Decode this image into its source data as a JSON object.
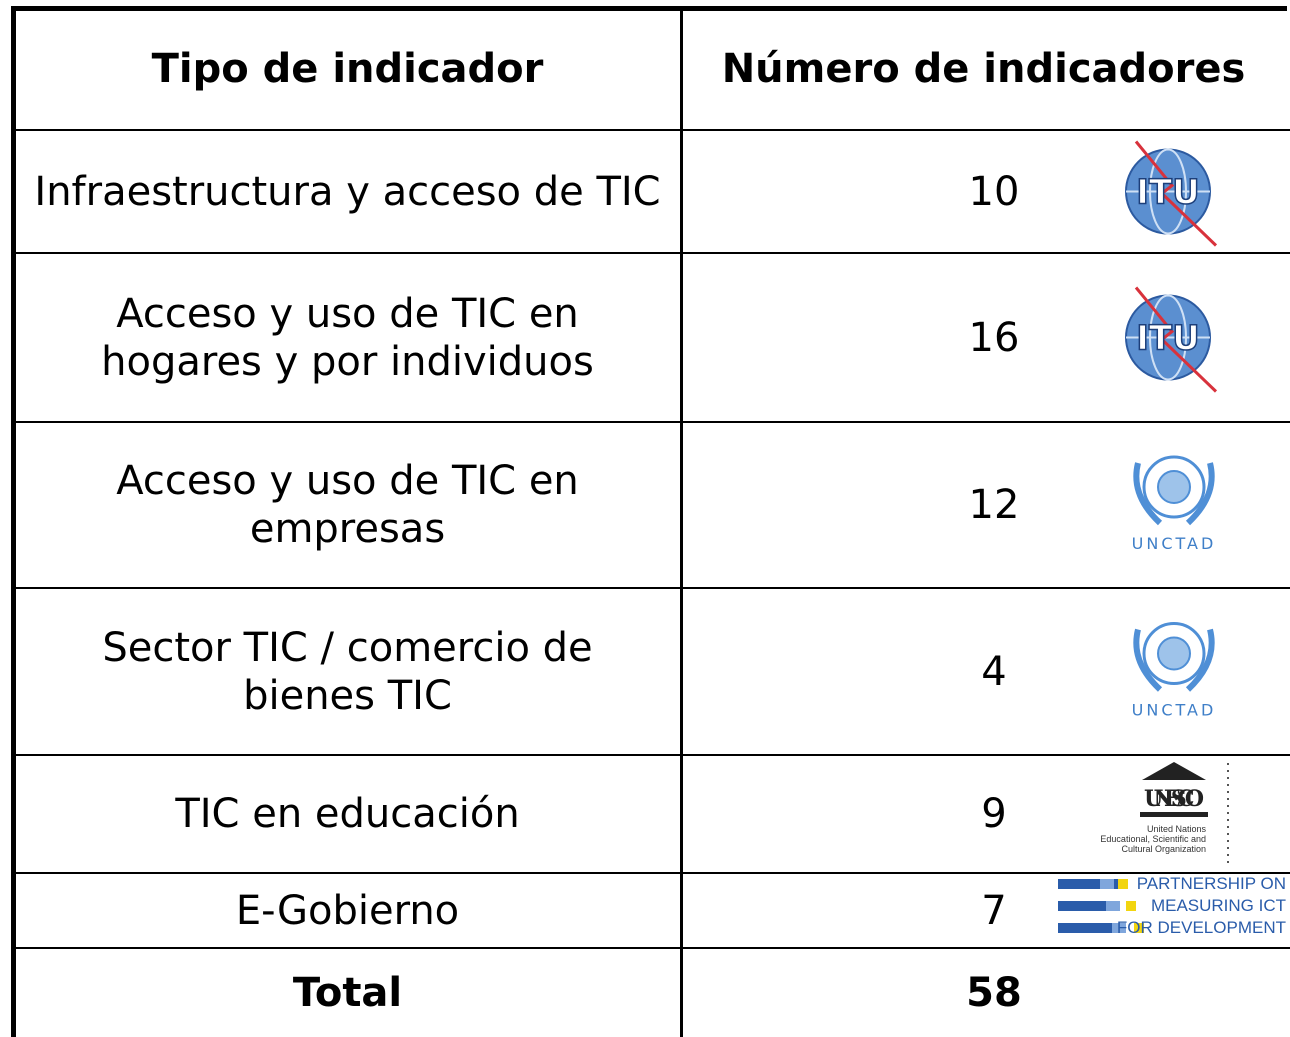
{
  "table": {
    "header": [
      "Tipo de indicador",
      "Número de indicadores"
    ],
    "rows": [
      {
        "type": "Infraestructura y acceso de TIC",
        "count": 10,
        "logo": {
          "kind": "itu",
          "text": "ITU"
        }
      },
      {
        "type": "Acceso y uso de TIC en hogares y por individuos",
        "count": 16,
        "logo": {
          "kind": "itu",
          "text": "ITU"
        }
      },
      {
        "type": "Acceso y uso de TIC en empresas",
        "count": 12,
        "logo": {
          "kind": "un",
          "text": "UNCTAD"
        }
      },
      {
        "type": "Sector TIC / comercio de bienes TIC",
        "count": 4,
        "logo": {
          "kind": "un",
          "text": "UNCTAD"
        }
      },
      {
        "type": "TIC en educación",
        "count": 9,
        "logo": {
          "kind": "unesco",
          "text": "UNESCO",
          "caption": [
            "United Nations",
            "Educational, Scientific and",
            "Cultural Organization"
          ]
        }
      },
      {
        "type": "E-Gobierno",
        "count": 7,
        "logo": {
          "kind": "partnership",
          "lines": [
            "PARTNERSHIP ON",
            "MEASURING ICT",
            "FOR DEVELOPMENT"
          ]
        }
      }
    ],
    "total": {
      "label": "Total",
      "count": 58
    }
  }
}
